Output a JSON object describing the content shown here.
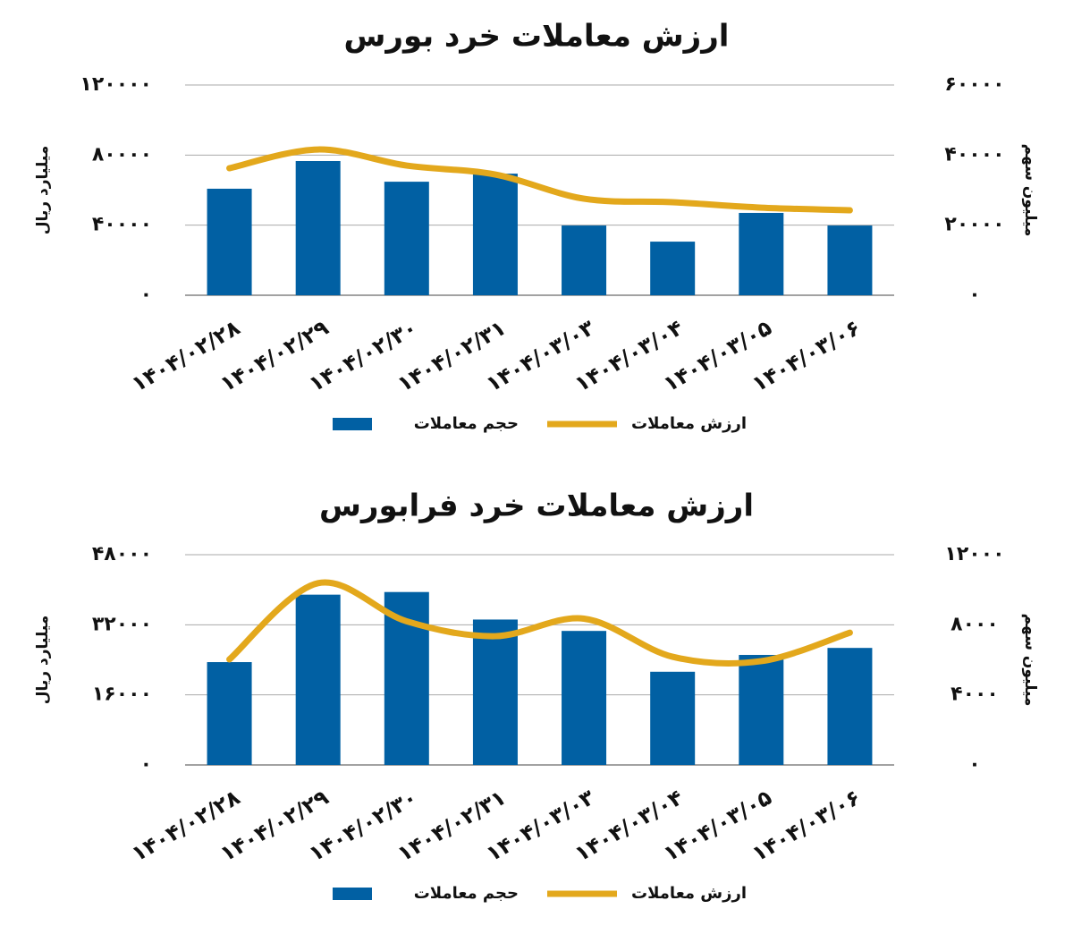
{
  "chart_data": [
    {
      "type": "combo",
      "title": "ارزش معاملات خرد بورس",
      "y_label": "میلیارد ریال",
      "y2_label": "میلیون سهم",
      "categories": [
        "۱۴۰۴/۰۲/۲۸",
        "۱۴۰۴/۰۲/۲۹",
        "۱۴۰۴/۰۲/۳۰",
        "۱۴۰۴/۰۲/۳۱",
        "۱۴۰۴/۰۳/۰۳",
        "۱۴۰۴/۰۳/۰۴",
        "۱۴۰۴/۰۳/۰۵",
        "۱۴۰۴/۰۳/۰۶"
      ],
      "series": [
        {
          "name": "حجم معاملات",
          "type": "bar",
          "axis": "y2",
          "color": "#0160a3",
          "values": [
            30400,
            38300,
            32400,
            34700,
            19900,
            15300,
            23500,
            19900
          ]
        },
        {
          "name": "ارزش معاملات",
          "type": "line",
          "color": "#e3a81c",
          "values": [
            72500,
            83200,
            74000,
            68900,
            55100,
            53100,
            50000,
            48500
          ]
        }
      ],
      "ylim": [
        0,
        120000
      ],
      "yticks": [
        {
          "value": 0,
          "label": "۰"
        },
        {
          "value": 40000,
          "label": "۴۰۰۰۰"
        },
        {
          "value": 80000,
          "label": "۸۰۰۰۰"
        },
        {
          "value": 120000,
          "label": "۱۲۰۰۰۰"
        }
      ],
      "y2lim": [
        0,
        60000
      ],
      "y2ticks": [
        {
          "value": 0,
          "label": "۰"
        },
        {
          "value": 20000,
          "label": "۲۰۰۰۰"
        },
        {
          "value": 40000,
          "label": "۴۰۰۰۰"
        },
        {
          "value": 60000,
          "label": "۶۰۰۰۰"
        }
      ],
      "grid": true
    },
    {
      "type": "combo",
      "title": "ارزش معاملات خرد فرابورس",
      "y_label": "میلیارد ریال",
      "y2_label": "میلیون سهم",
      "categories": [
        "۱۴۰۴/۰۲/۲۸",
        "۱۴۰۴/۰۲/۲۹",
        "۱۴۰۴/۰۲/۳۰",
        "۱۴۰۴/۰۲/۳۱",
        "۱۴۰۴/۰۳/۰۳",
        "۱۴۰۴/۰۳/۰۴",
        "۱۴۰۴/۰۳/۰۵",
        "۱۴۰۴/۰۳/۰۶"
      ],
      "series": [
        {
          "name": "حجم معاملات",
          "type": "bar",
          "axis": "y2",
          "color": "#0160a3",
          "values": [
            5870,
            9720,
            9870,
            8300,
            7650,
            5320,
            6280,
            6680
          ]
        },
        {
          "name": "ارزش معاملات",
          "type": "line",
          "color": "#e3a81c",
          "values": [
            24100,
            41500,
            32800,
            29400,
            33400,
            24700,
            23700,
            30200
          ]
        }
      ],
      "ylim": [
        0,
        48000
      ],
      "yticks": [
        {
          "value": 0,
          "label": "۰"
        },
        {
          "value": 16000,
          "label": "۱۶۰۰۰"
        },
        {
          "value": 32000,
          "label": "۳۲۰۰۰"
        },
        {
          "value": 48000,
          "label": "۴۸۰۰۰"
        }
      ],
      "y2lim": [
        0,
        12000
      ],
      "y2ticks": [
        {
          "value": 0,
          "label": "۰"
        },
        {
          "value": 4000,
          "label": "۴۰۰۰"
        },
        {
          "value": 8000,
          "label": "۸۰۰۰"
        },
        {
          "value": 12000,
          "label": "۱۲۰۰۰"
        }
      ],
      "grid": true
    }
  ]
}
